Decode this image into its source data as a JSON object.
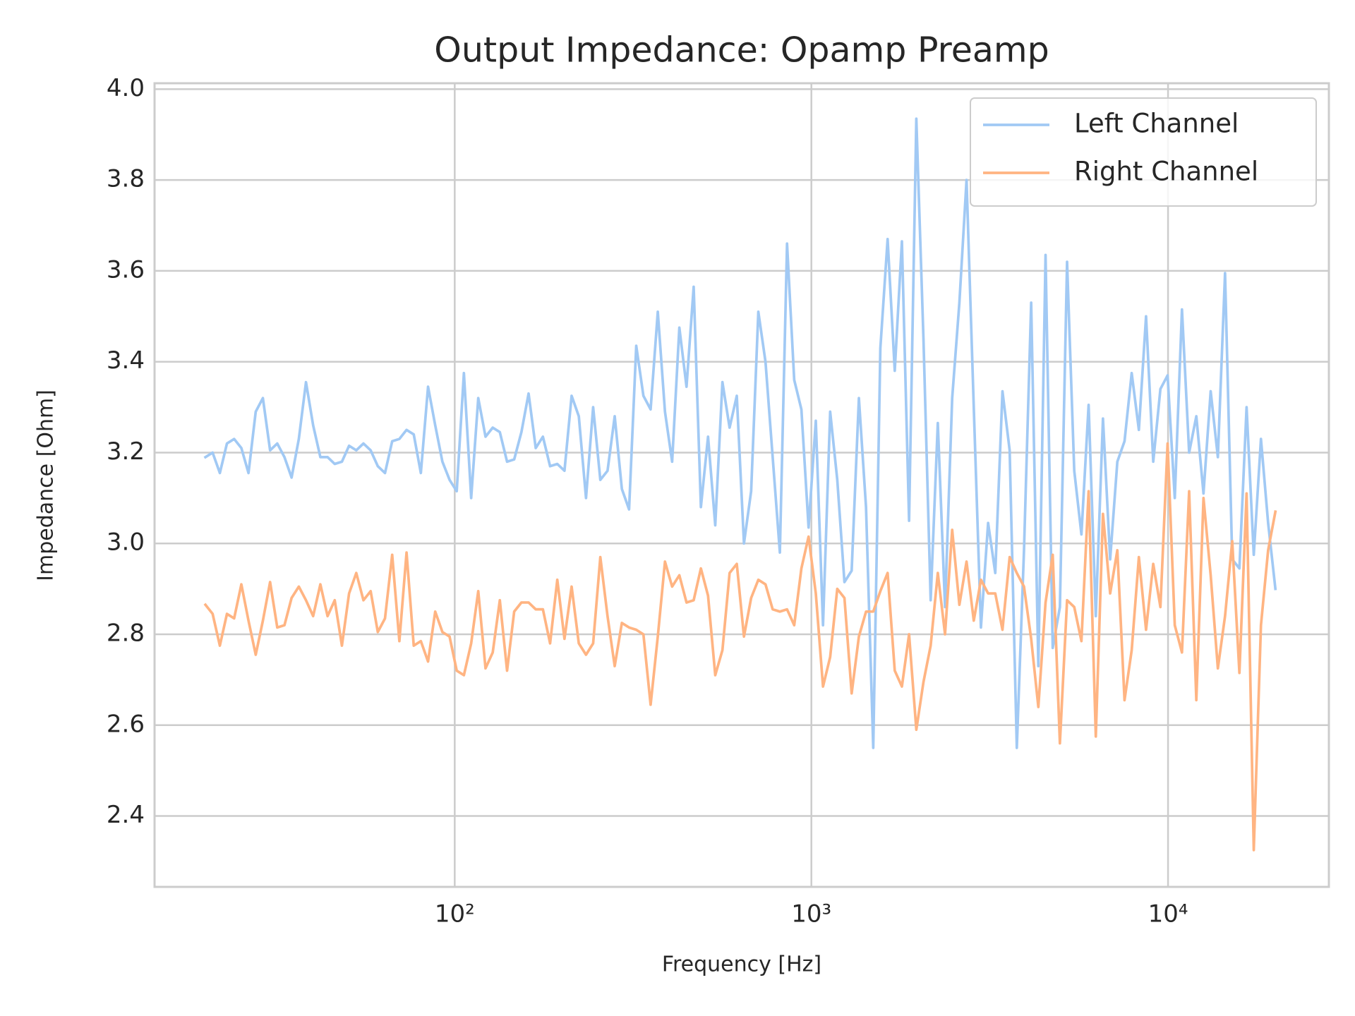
{
  "chart_data": {
    "type": "line",
    "title": "Output Impedance: Opamp Preamp",
    "x_label": "Frequency [Hz]",
    "y_label": "Impedance [Ohm]",
    "x_scale": "log",
    "grid": true,
    "legend": "upper right",
    "xlim": [
      14.4,
      28250
    ],
    "ylim": [
      2.244,
      4.013
    ],
    "xticks": [
      {
        "value": 100,
        "label": "10²"
      },
      {
        "value": 1000,
        "label": "10³"
      },
      {
        "value": 10000,
        "label": "10⁴"
      }
    ],
    "yticks": [
      2.4,
      2.6,
      2.8,
      {
        "value": 3.0,
        "label": "3.0"
      },
      3.2,
      3.4,
      3.6,
      3.8,
      {
        "value": 4.0,
        "label": "4.0"
      }
    ],
    "x": [
      20.0,
      20.95,
      21.95,
      22.98,
      24.07,
      25.22,
      26.41,
      27.67,
      28.98,
      30.36,
      31.8,
      33.31,
      34.88,
      36.55,
      38.28,
      40.09,
      42.0,
      44.0,
      46.08,
      48.27,
      50.56,
      52.96,
      55.47,
      58.11,
      60.86,
      63.75,
      66.78,
      69.95,
      73.27,
      76.75,
      80.35,
      84.18,
      88.17,
      92.35,
      96.72,
      101.3,
      106.1,
      111.2,
      116.4,
      122.0,
      127.8,
      133.8,
      140.2,
      146.8,
      153.8,
      161.1,
      168.7,
      176.7,
      185.1,
      193.9,
      203.1,
      212.7,
      222.8,
      233.4,
      244.4,
      256.0,
      268.2,
      280.9,
      294.2,
      308.2,
      322.8,
      338.1,
      354.2,
      371.0,
      388.6,
      407.0,
      426.4,
      446.6,
      467.7,
      490.0,
      513.2,
      537.6,
      563.1,
      589.8,
      617.8,
      647.1,
      677.8,
      710.0,
      743.6,
      778.9,
      815.9,
      854.6,
      895.1,
      937.6,
      982.1,
      1029,
      1078,
      1129,
      1182,
      1238,
      1297,
      1359,
      1423,
      1491,
      1561,
      1636,
      1713,
      1794,
      1879,
      1969,
      2062,
      2160,
      2262,
      2370,
      2482,
      2600,
      2723,
      2853,
      2988,
      3130,
      3278,
      3434,
      3597,
      3767,
      3946,
      4133,
      4329,
      4535,
      4750,
      4975,
      5211,
      5458,
      5717,
      5989,
      6273,
      6570,
      6882,
      7209,
      7551,
      7909,
      8284,
      8677,
      9089,
      9520,
      9972,
      10445,
      10941,
      11460,
      12004,
      12573,
      13170,
      13795,
      14449,
      15135,
      15853,
      16605,
      17393,
      18219,
      19083,
      20000
    ],
    "series": [
      {
        "name": "Left Channel",
        "color": "#a1c9f4",
        "values": [
          3.19,
          3.2,
          3.155,
          3.22,
          3.23,
          3.21,
          3.155,
          3.29,
          3.32,
          3.205,
          3.22,
          3.19,
          3.145,
          3.23,
          3.355,
          3.26,
          3.19,
          3.19,
          3.175,
          3.18,
          3.215,
          3.205,
          3.22,
          3.205,
          3.17,
          3.155,
          3.225,
          3.23,
          3.25,
          3.24,
          3.155,
          3.345,
          3.26,
          3.18,
          3.14,
          3.115,
          3.375,
          3.1,
          3.32,
          3.235,
          3.255,
          3.245,
          3.18,
          3.185,
          3.245,
          3.33,
          3.21,
          3.235,
          3.17,
          3.175,
          3.16,
          3.325,
          3.28,
          3.1,
          3.3,
          3.14,
          3.16,
          3.28,
          3.12,
          3.075,
          3.435,
          3.325,
          3.295,
          3.51,
          3.29,
          3.18,
          3.475,
          3.345,
          3.565,
          3.08,
          3.235,
          3.04,
          3.355,
          3.255,
          3.325,
          3.0,
          3.115,
          3.51,
          3.4,
          3.19,
          2.98,
          3.66,
          3.36,
          3.295,
          3.035,
          3.27,
          2.82,
          3.29,
          3.14,
          2.915,
          2.94,
          3.32,
          3.08,
          2.55,
          3.43,
          3.67,
          3.38,
          3.665,
          3.05,
          3.935,
          3.45,
          2.875,
          3.265,
          2.86,
          3.32,
          3.53,
          3.8,
          3.3,
          2.815,
          3.045,
          2.935,
          3.335,
          3.205,
          2.55,
          2.985,
          3.53,
          2.73,
          3.635,
          2.77,
          2.86,
          3.62,
          3.16,
          3.02,
          3.305,
          2.84,
          3.275,
          2.965,
          3.18,
          3.225,
          3.375,
          3.25,
          3.5,
          3.18,
          3.34,
          3.37,
          3.1,
          3.515,
          3.2,
          3.28,
          3.11,
          3.335,
          3.19,
          3.595,
          2.965,
          2.945,
          3.3,
          2.975,
          3.23,
          3.045,
          2.9
        ]
      },
      {
        "name": "Right Channel",
        "color": "#ffb482",
        "values": [
          2.865,
          2.845,
          2.775,
          2.845,
          2.835,
          2.91,
          2.83,
          2.755,
          2.83,
          2.915,
          2.815,
          2.82,
          2.88,
          2.905,
          2.875,
          2.84,
          2.91,
          2.84,
          2.875,
          2.775,
          2.89,
          2.935,
          2.875,
          2.895,
          2.805,
          2.835,
          2.975,
          2.785,
          2.98,
          2.775,
          2.785,
          2.74,
          2.85,
          2.805,
          2.795,
          2.72,
          2.71,
          2.78,
          2.895,
          2.725,
          2.76,
          2.875,
          2.72,
          2.85,
          2.87,
          2.87,
          2.855,
          2.855,
          2.78,
          2.92,
          2.79,
          2.905,
          2.78,
          2.755,
          2.78,
          2.97,
          2.84,
          2.73,
          2.825,
          2.815,
          2.81,
          2.8,
          2.645,
          2.795,
          2.96,
          2.905,
          2.93,
          2.87,
          2.875,
          2.945,
          2.885,
          2.71,
          2.765,
          2.935,
          2.955,
          2.795,
          2.88,
          2.92,
          2.91,
          2.855,
          2.85,
          2.855,
          2.82,
          2.945,
          3.015,
          2.89,
          2.685,
          2.75,
          2.9,
          2.88,
          2.67,
          2.795,
          2.85,
          2.85,
          2.895,
          2.935,
          2.72,
          2.685,
          2.8,
          2.59,
          2.695,
          2.775,
          2.935,
          2.8,
          3.03,
          2.865,
          2.96,
          2.83,
          2.92,
          2.89,
          2.89,
          2.81,
          2.97,
          2.935,
          2.905,
          2.79,
          2.64,
          2.87,
          2.975,
          2.56,
          2.875,
          2.86,
          2.785,
          3.115,
          2.575,
          3.065,
          2.89,
          2.985,
          2.655,
          2.765,
          2.97,
          2.81,
          2.955,
          2.86,
          3.22,
          2.82,
          2.76,
          3.115,
          2.655,
          3.1,
          2.93,
          2.725,
          2.84,
          3.005,
          2.715,
          3.11,
          2.325,
          2.82,
          2.985,
          3.07
        ]
      }
    ]
  }
}
